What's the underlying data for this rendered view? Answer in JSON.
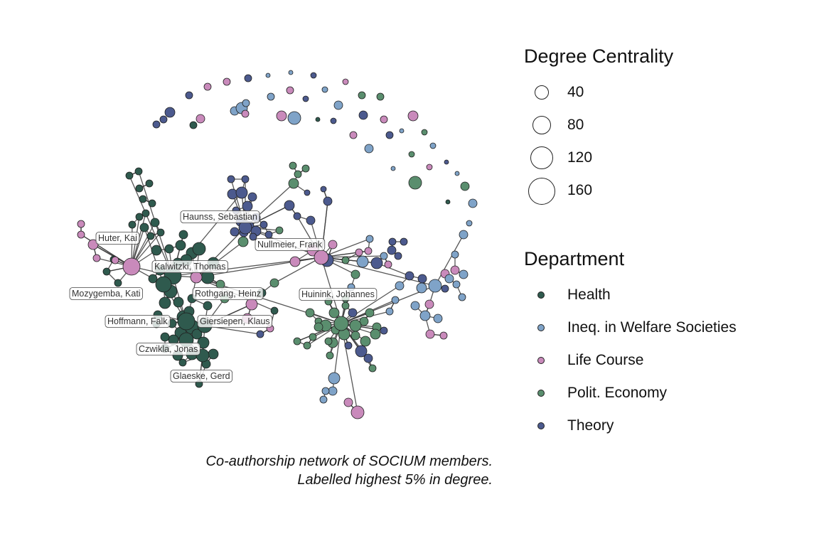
{
  "legend_size": {
    "title": "Degree Centrality",
    "items": [
      {
        "label": "40",
        "value": 40
      },
      {
        "label": "80",
        "value": 80
      },
      {
        "label": "120",
        "value": 120
      },
      {
        "label": "160",
        "value": 160
      }
    ]
  },
  "legend_dept": {
    "title": "Department",
    "items": [
      {
        "label": "Health",
        "color": "#2f5a4e"
      },
      {
        "label": "Ineq. in Welfare Societies",
        "color": "#7fa3c8"
      },
      {
        "label": "Life Course",
        "color": "#c98abb"
      },
      {
        "label": "Polit. Economy",
        "color": "#5a8e6e"
      },
      {
        "label": "Theory",
        "color": "#4c5a8e"
      }
    ]
  },
  "caption": {
    "line1": "Co-authorship network of SOCIUM members.",
    "line2": "Labelled highest 5% in degree."
  },
  "node_labels": [
    {
      "text": "Haunss, Sebastian",
      "dept": "Theory"
    },
    {
      "text": "Huter, Kai",
      "dept": "Life Course"
    },
    {
      "text": "Nullmeier, Frank",
      "dept": "Theory"
    },
    {
      "text": "Kalwitzki, Thomas",
      "dept": "Health"
    },
    {
      "text": "Mozygemba, Kati",
      "dept": "Health"
    },
    {
      "text": "Rothgang, Heinz",
      "dept": "Health"
    },
    {
      "text": "Huinink, Johannes",
      "dept": "Life Course"
    },
    {
      "text": "Hoffmann, Falk",
      "dept": "Health"
    },
    {
      "text": "Giersiepen, Klaus",
      "dept": "Health"
    },
    {
      "text": "Czwikla, Jonas",
      "dept": "Health"
    },
    {
      "text": "Glaeske, Gerd",
      "dept": "Health"
    }
  ]
}
